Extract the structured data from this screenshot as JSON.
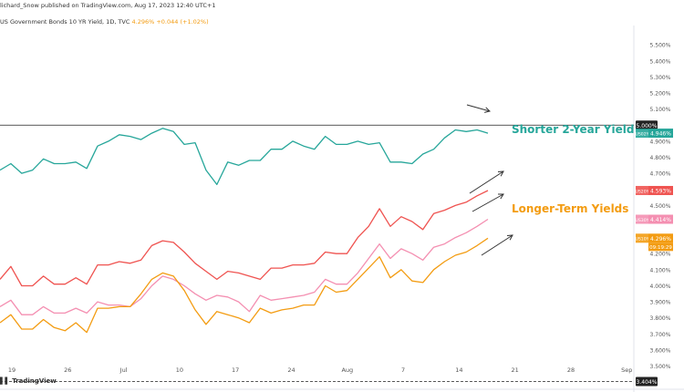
{
  "header": {
    "attribution": "lichard_Snow published on TradingView.com, Aug 17, 2023 12:40 UTC+1",
    "symbol_desc": "US Government Bonds 10 YR Yield, 1D, TVC",
    "symbol_values": "4.296% +0.044 (+1.02%)"
  },
  "footer": {
    "brand": "TradingView"
  },
  "colors": {
    "two_year": "#26a69a",
    "twenty_year": "#ef5350",
    "thirty_year": "#f48fb1",
    "ten_year": "#f39c12",
    "arrow": "#333333",
    "annotation_short": "#26a69a",
    "annotation_long": "#f39c12"
  },
  "chart_data": {
    "type": "line",
    "title": "",
    "ylabel": "",
    "xlabel": "",
    "ylim": [
      3.35,
      5.62
    ],
    "x_ticks": [
      "19",
      "26",
      "Jul",
      "10",
      "17",
      "24",
      "Aug",
      "7",
      "14",
      "21",
      "28",
      "Sep"
    ],
    "y_ticks": [
      "5.500%",
      "5.400%",
      "5.300%",
      "5.200%",
      "5.100%",
      "4.900%",
      "4.800%",
      "4.700%",
      "4.600%",
      "4.500%",
      "4.400%",
      "4.300%",
      "4.200%",
      "4.100%",
      "4.000%",
      "3.900%",
      "3.800%",
      "3.700%",
      "3.600%",
      "3.500%"
    ],
    "hline": {
      "value": 5.0,
      "label": "5.000%"
    },
    "bottom_line": {
      "value": 3.404,
      "label": "3.404%"
    },
    "annotations": [
      "Shorter 2-Year Yield",
      "Longer-Term Yields"
    ],
    "series": [
      {
        "name": "US02Y",
        "key": "two_year",
        "last_label": "4.946%",
        "values": [
          4.72,
          4.76,
          4.7,
          4.72,
          4.79,
          4.76,
          4.76,
          4.77,
          4.73,
          4.87,
          4.9,
          4.94,
          4.93,
          4.91,
          4.95,
          4.98,
          4.96,
          4.88,
          4.89,
          4.72,
          4.63,
          4.77,
          4.75,
          4.78,
          4.78,
          4.85,
          4.85,
          4.9,
          4.87,
          4.85,
          4.93,
          4.88,
          4.88,
          4.9,
          4.88,
          4.89,
          4.77,
          4.77,
          4.76,
          4.82,
          4.85,
          4.92,
          4.97,
          4.96,
          4.97,
          4.95
        ]
      },
      {
        "name": "US20Y",
        "key": "twenty_year",
        "last_label": "4.593%",
        "values": [
          4.04,
          4.12,
          4.0,
          4.0,
          4.06,
          4.01,
          4.01,
          4.05,
          4.01,
          4.13,
          4.13,
          4.15,
          4.14,
          4.16,
          4.25,
          4.28,
          4.27,
          4.21,
          4.14,
          4.09,
          4.04,
          4.09,
          4.08,
          4.06,
          4.04,
          4.11,
          4.11,
          4.13,
          4.13,
          4.14,
          4.21,
          4.2,
          4.2,
          4.3,
          4.37,
          4.48,
          4.37,
          4.43,
          4.4,
          4.35,
          4.45,
          4.47,
          4.5,
          4.52,
          4.56,
          4.593
        ]
      },
      {
        "name": "US30Y",
        "key": "thirty_year",
        "last_label": "4.414%",
        "values": [
          3.87,
          3.91,
          3.82,
          3.82,
          3.87,
          3.83,
          3.83,
          3.86,
          3.83,
          3.9,
          3.88,
          3.88,
          3.87,
          3.92,
          4.0,
          4.06,
          4.04,
          4.0,
          3.95,
          3.91,
          3.94,
          3.93,
          3.9,
          3.84,
          3.94,
          3.91,
          3.92,
          3.93,
          3.94,
          3.96,
          4.04,
          4.01,
          4.01,
          4.08,
          4.17,
          4.26,
          4.17,
          4.23,
          4.2,
          4.16,
          4.24,
          4.26,
          4.3,
          4.33,
          4.37,
          4.414
        ]
      },
      {
        "name": "US10Y",
        "key": "ten_year",
        "last_label": "4.296%",
        "values": [
          3.77,
          3.82,
          3.73,
          3.73,
          3.79,
          3.74,
          3.72,
          3.77,
          3.71,
          3.86,
          3.86,
          3.87,
          3.87,
          3.95,
          4.04,
          4.08,
          4.06,
          3.97,
          3.85,
          3.76,
          3.84,
          3.82,
          3.8,
          3.77,
          3.86,
          3.83,
          3.85,
          3.86,
          3.88,
          3.88,
          4.0,
          3.96,
          3.97,
          4.04,
          4.11,
          4.18,
          4.05,
          4.1,
          4.03,
          4.02,
          4.1,
          4.15,
          4.19,
          4.21,
          4.25,
          4.296
        ]
      }
    ],
    "last_bar_timer": "09:19:29"
  }
}
